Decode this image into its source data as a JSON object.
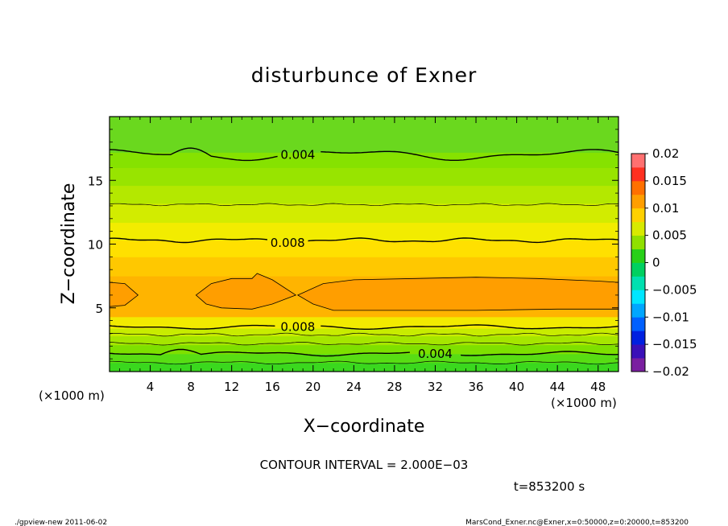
{
  "chart_data": {
    "type": "contour",
    "title": "disturbunce of Exner",
    "xlabel": "X−coordinate",
    "ylabel": "Z−coordinate",
    "x_unit_left": "(×1000 m)",
    "x_unit_right": "(×1000 m)",
    "x_ticks": [
      "4",
      "8",
      "12",
      "16",
      "20",
      "24",
      "28",
      "32",
      "36",
      "40",
      "44",
      "48"
    ],
    "y_ticks": [
      "5",
      "10",
      "15"
    ],
    "xlim": [
      0,
      50
    ],
    "ylim": [
      0,
      20
    ],
    "contour_interval_text": "CONTOUR INTERVAL = 2.000E−03",
    "time_text": "t=853200 s",
    "contour_labels": [
      {
        "text": "0.004",
        "x": 18.5,
        "z": 17.0
      },
      {
        "text": "0.008",
        "x": 17.5,
        "z": 10.1
      },
      {
        "text": "0.008",
        "x": 18.5,
        "z": 3.5
      },
      {
        "text": "0.004",
        "x": 32.0,
        "z": 1.4
      }
    ],
    "colorbar": {
      "labels": [
        "0.02",
        "0.015",
        "0.01",
        "0.005",
        "0",
        "−0.005",
        "−0.01",
        "−0.015",
        "−0.02"
      ],
      "min": -0.02,
      "max": 0.02,
      "colors": [
        "#7a1fa0",
        "#3a10b8",
        "#0020e0",
        "#0060ff",
        "#00a6ff",
        "#00e6ff",
        "#00e0b0",
        "#00d060",
        "#28d018",
        "#90e000",
        "#d8ea00",
        "#ffd000",
        "#ff9e00",
        "#ff7000",
        "#ff3020",
        "#ff7070"
      ]
    },
    "fields": [
      {
        "z0": 0.0,
        "z1": 0.7,
        "value": 0.001,
        "color": "#3ad81e"
      },
      {
        "z0": 0.7,
        "z1": 1.4,
        "value": 0.002,
        "color": "#58dd14"
      },
      {
        "z0": 1.4,
        "z1": 2.1,
        "value": 0.004,
        "color": "#7ee000"
      },
      {
        "z0": 2.1,
        "z1": 2.8,
        "value": 0.005,
        "color": "#a6e600"
      },
      {
        "z0": 2.8,
        "z1": 3.4,
        "value": 0.006,
        "color": "#c8ec00"
      },
      {
        "z0": 3.4,
        "z1": 4.3,
        "value": 0.007,
        "color": "#f2ea00"
      },
      {
        "z0": 4.3,
        "z1": 7.5,
        "value": 0.009,
        "color": "#ffb400"
      },
      {
        "z0": 7.5,
        "z1": 9.0,
        "value": 0.008,
        "color": "#ffc800"
      },
      {
        "z0": 9.0,
        "z1": 10.3,
        "value": 0.0075,
        "color": "#ffe000"
      },
      {
        "z0": 10.3,
        "z1": 11.7,
        "value": 0.007,
        "color": "#f2ec00"
      },
      {
        "z0": 11.7,
        "z1": 13.2,
        "value": 0.006,
        "color": "#d2ec00"
      },
      {
        "z0": 13.2,
        "z1": 14.6,
        "value": 0.0055,
        "color": "#b4e800"
      },
      {
        "z0": 14.6,
        "z1": 16.0,
        "value": 0.005,
        "color": "#98e400"
      },
      {
        "z0": 16.0,
        "z1": 17.2,
        "value": 0.0045,
        "color": "#86e200"
      },
      {
        "z0": 17.2,
        "z1": 20.0,
        "value": 0.003,
        "color": "#6ad81e"
      }
    ],
    "core_color": "#ff9e00",
    "footer_left": "./gpview-new   2011-06-02",
    "footer_right": "MarsCond_Exner.nc@Exner,x=0:50000,z=0:20000,t=853200"
  }
}
